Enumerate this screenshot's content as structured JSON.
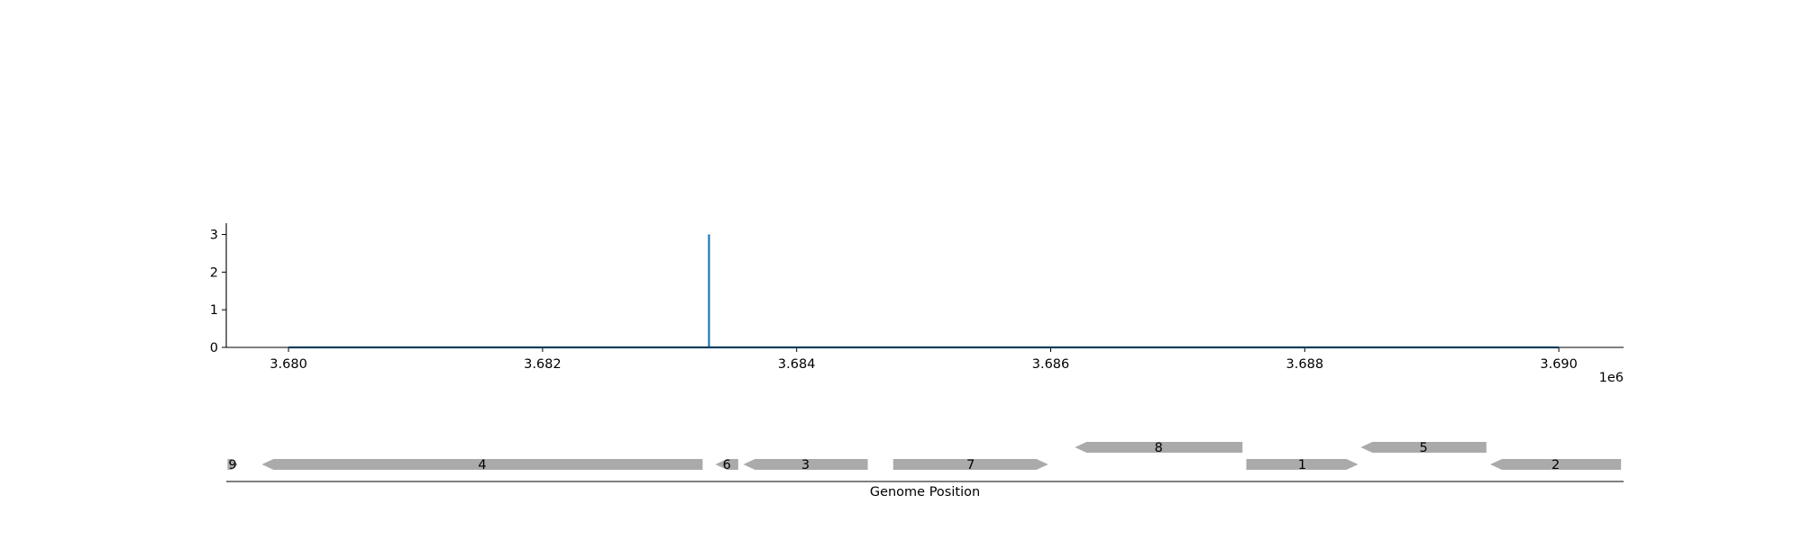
{
  "chart_data": {
    "type": "line",
    "xlabel": "Genome Position",
    "x_offset_label": "1e6",
    "x_ticks": [
      3.68,
      3.682,
      3.684,
      3.686,
      3.688,
      3.69
    ],
    "x_tick_labels": [
      "3.680",
      "3.682",
      "3.684",
      "3.686",
      "3.688",
      "3.690"
    ],
    "xlim": [
      3.67951,
      3.69051
    ],
    "y_ticks": [
      0,
      1,
      2,
      3
    ],
    "y_tick_labels": [
      "0",
      "1",
      "2",
      "3"
    ],
    "ylim": [
      0,
      3.3
    ],
    "series": [
      {
        "color": "#1f77b4",
        "x": [
          3.68,
          3.68331,
          3.68331,
          3.68331,
          3.69
        ],
        "y": [
          0,
          0,
          3,
          0,
          0
        ]
      }
    ],
    "gene_track": {
      "color": "#aaaaaa",
      "genes": [
        {
          "label": "9",
          "start": 3.67952,
          "end": 3.6796,
          "strand": "+",
          "row": 0
        },
        {
          "label": "4",
          "start": 3.67979,
          "end": 3.68326,
          "strand": "-",
          "row": 0
        },
        {
          "label": "6",
          "start": 3.68336,
          "end": 3.68354,
          "strand": "-",
          "row": 0
        },
        {
          "label": "3",
          "start": 3.68358,
          "end": 3.68456,
          "strand": "-",
          "row": 0
        },
        {
          "label": "7",
          "start": 3.68476,
          "end": 3.68598,
          "strand": "+",
          "row": 0
        },
        {
          "label": "8",
          "start": 3.68619,
          "end": 3.68751,
          "strand": "-",
          "row": 1
        },
        {
          "label": "1",
          "start": 3.68754,
          "end": 3.68842,
          "strand": "+",
          "row": 0
        },
        {
          "label": "5",
          "start": 3.68844,
          "end": 3.68943,
          "strand": "-",
          "row": 1
        },
        {
          "label": "2",
          "start": 3.68946,
          "end": 3.69049,
          "strand": "-",
          "row": 0
        }
      ]
    }
  }
}
